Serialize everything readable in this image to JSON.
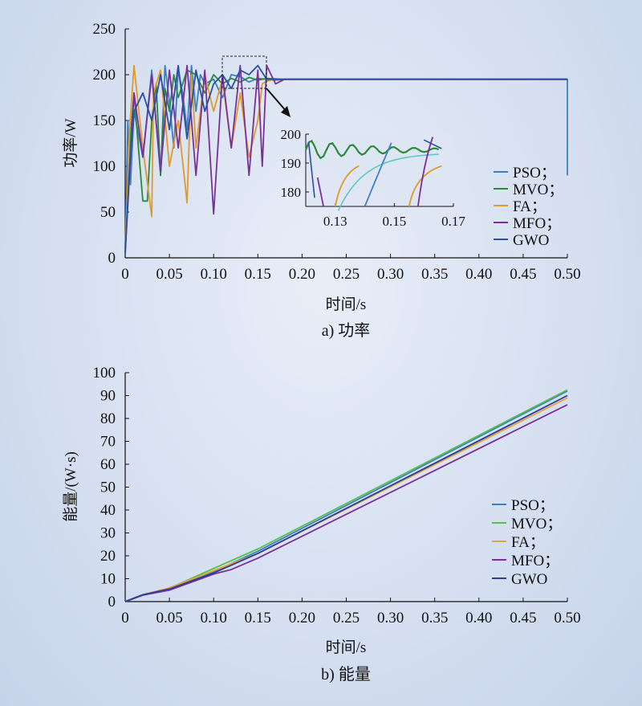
{
  "chart_data": [
    {
      "type": "line",
      "caption": "a) 功率",
      "xlabel": "时间/s",
      "ylabel": "功率/W",
      "xlim": [
        0,
        0.5
      ],
      "ylim": [
        0,
        250
      ],
      "xticks": [
        "0",
        "0.05",
        "0.10",
        "0.15",
        "0.20",
        "0.25",
        "0.30",
        "0.35",
        "0.40",
        "0.45",
        "0.50"
      ],
      "yticks": [
        "0",
        "50",
        "100",
        "150",
        "200",
        "250"
      ],
      "legend": [
        "PSO；",
        "MVO；",
        "FA；",
        "MFO；",
        "GWO"
      ],
      "colors": {
        "PSO": "#3b7fc4",
        "MVO": "#2a8a3a",
        "FA": "#e09a2a",
        "MFO": "#7a2f9a",
        "GWO": "#2b4fa0",
        "zoom_extra": "#5cc6c9"
      },
      "steady_state": 195,
      "series": [
        {
          "name": "PSO",
          "x": [
            0,
            0.003,
            0.006,
            0.01,
            0.02,
            0.03,
            0.04,
            0.045,
            0.05,
            0.055,
            0.06,
            0.065,
            0.07,
            0.075,
            0.08,
            0.085,
            0.09,
            0.1,
            0.11,
            0.12,
            0.13,
            0.14,
            0.15,
            0.16,
            0.17,
            0.18,
            0.2,
            0.5,
            0.5
          ],
          "y": [
            5,
            150,
            80,
            160,
            110,
            205,
            90,
            210,
            170,
            120,
            205,
            180,
            140,
            210,
            160,
            200,
            190,
            195,
            175,
            200,
            198,
            192,
            196,
            195,
            194,
            195,
            195,
            195,
            90
          ]
        },
        {
          "name": "MVO",
          "x": [
            0,
            0.005,
            0.01,
            0.015,
            0.02,
            0.025,
            0.03,
            0.035,
            0.04,
            0.045,
            0.05,
            0.055,
            0.06,
            0.07,
            0.08,
            0.09,
            0.1,
            0.11,
            0.12,
            0.13,
            0.14,
            0.15,
            0.16,
            0.18,
            0.2,
            0.5
          ],
          "y": [
            10,
            120,
            180,
            120,
            62,
            62,
            150,
            190,
            90,
            185,
            160,
            200,
            175,
            205,
            200,
            180,
            200,
            190,
            196,
            192,
            197,
            194,
            196,
            195,
            195,
            195
          ]
        },
        {
          "name": "FA",
          "x": [
            0,
            0.005,
            0.01,
            0.02,
            0.03,
            0.032,
            0.04,
            0.05,
            0.06,
            0.07,
            0.075,
            0.08,
            0.09,
            0.1,
            0.11,
            0.12,
            0.13,
            0.14,
            0.15,
            0.155,
            0.16,
            0.17,
            0.2,
            0.5
          ],
          "y": [
            5,
            140,
            210,
            120,
            45,
            180,
            205,
            100,
            150,
            60,
            200,
            120,
            200,
            160,
            195,
            120,
            180,
            110,
            150,
            190,
            193,
            195,
            195,
            195
          ]
        },
        {
          "name": "MFO",
          "x": [
            0,
            0.01,
            0.02,
            0.03,
            0.04,
            0.05,
            0.06,
            0.07,
            0.08,
            0.09,
            0.1,
            0.11,
            0.12,
            0.13,
            0.14,
            0.15,
            0.155,
            0.16,
            0.17,
            0.18,
            0.2,
            0.5
          ],
          "y": [
            5,
            180,
            110,
            200,
            95,
            205,
            120,
            210,
            90,
            205,
            48,
            200,
            120,
            210,
            90,
            205,
            100,
            210,
            190,
            195,
            195,
            195
          ]
        },
        {
          "name": "GWO",
          "x": [
            0,
            0.005,
            0.01,
            0.02,
            0.03,
            0.04,
            0.05,
            0.06,
            0.07,
            0.08,
            0.09,
            0.1,
            0.11,
            0.12,
            0.13,
            0.14,
            0.15,
            0.16,
            0.18,
            0.2,
            0.5
          ],
          "y": [
            5,
            100,
            160,
            180,
            150,
            200,
            140,
            210,
            130,
            205,
            160,
            190,
            200,
            185,
            205,
            200,
            210,
            195,
            195,
            195,
            195
          ]
        }
      ],
      "inset": {
        "xlim": [
          0.12,
          0.17
        ],
        "ylim": [
          175,
          200
        ],
        "xticks": [
          "0.13",
          "0.15",
          "0.17"
        ],
        "yticks": [
          "180",
          "190",
          "200"
        ]
      }
    },
    {
      "type": "line",
      "caption": "b) 能量",
      "xlabel": "时间/s",
      "ylabel": "能量/(W·s)",
      "xlim": [
        0,
        0.5
      ],
      "ylim": [
        0,
        100
      ],
      "xticks": [
        "0",
        "0.05",
        "0.10",
        "0.15",
        "0.20",
        "0.25",
        "0.30",
        "0.35",
        "0.40",
        "0.45",
        "0.50"
      ],
      "yticks": [
        "0",
        "10",
        "20",
        "30",
        "40",
        "50",
        "60",
        "70",
        "80",
        "90",
        "100"
      ],
      "legend": [
        "PSO；",
        "MVO；",
        "FA；",
        "MFO；",
        "GWO"
      ],
      "colors": {
        "PSO": "#3b7fc4",
        "MVO": "#55c04a",
        "FA": "#e3a23a",
        "MFO": "#7a2f9a",
        "GWO": "#2b3f99"
      },
      "series": [
        {
          "name": "PSO",
          "x": [
            0,
            0.02,
            0.05,
            0.1,
            0.15,
            0.5
          ],
          "y": [
            0,
            3,
            5.5,
            13,
            22,
            92
          ]
        },
        {
          "name": "MVO",
          "x": [
            0,
            0.02,
            0.05,
            0.1,
            0.15,
            0.5
          ],
          "y": [
            0,
            3,
            5.8,
            14.5,
            23,
            92.5
          ]
        },
        {
          "name": "FA",
          "x": [
            0,
            0.02,
            0.05,
            0.1,
            0.15,
            0.5
          ],
          "y": [
            0,
            3,
            6,
            13.5,
            21,
            89
          ]
        },
        {
          "name": "MFO",
          "x": [
            0,
            0.02,
            0.05,
            0.1,
            0.12,
            0.15,
            0.5
          ],
          "y": [
            0,
            2.8,
            5,
            12,
            14,
            19,
            86
          ]
        },
        {
          "name": "GWO",
          "x": [
            0,
            0.02,
            0.05,
            0.1,
            0.15,
            0.5
          ],
          "y": [
            0,
            3,
            5.5,
            12.5,
            21,
            90
          ]
        }
      ]
    }
  ]
}
